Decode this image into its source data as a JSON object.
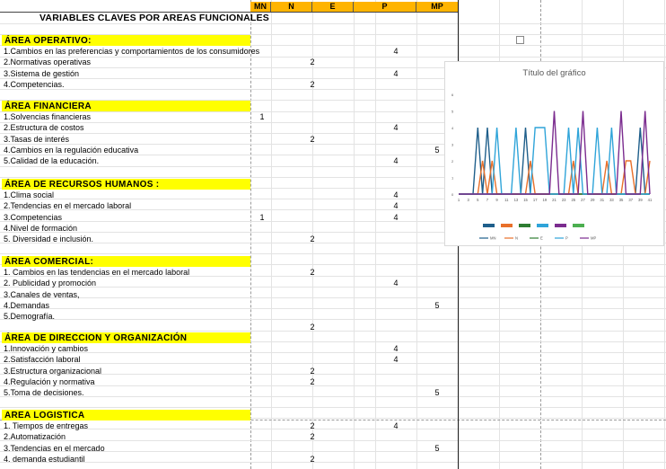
{
  "header": {
    "columns": [
      "MN",
      "N",
      "E",
      "P",
      "MP"
    ],
    "title": "VARIABLES CLAVES POR AREAS FUNCIONALES"
  },
  "sections": [
    {
      "name": "ÁREA OPERATIVO:",
      "items": [
        {
          "label": "1.Cambios en las preferencias y comportamientos de los consumidores",
          "col": "P",
          "value": "4"
        },
        {
          "label": "2.Normativas operativas",
          "col": "N",
          "value": "2"
        },
        {
          "label": "3.Sistema de gestión",
          "col": "P",
          "value": "4"
        },
        {
          "label": "4.Competencias.",
          "col": "N",
          "value": "2"
        }
      ]
    },
    {
      "name": "ÁREA FINANCIERA",
      "items": [
        {
          "label": "1.Solvencias financieras",
          "col": "MN",
          "value": "1"
        },
        {
          "label": "2.Estructura de costos",
          "col": "P",
          "value": "4"
        },
        {
          "label": "3.Tasas de interés",
          "col": "N",
          "value": "2"
        },
        {
          "label": "4.Cambios en la regulación educativa",
          "col": "MP",
          "value": "5"
        },
        {
          "label": "5.Calidad de la educación.",
          "col": "P",
          "value": "4"
        }
      ]
    },
    {
      "name": "ÁREA DE RECURSOS HUMANOS  :",
      "items": [
        {
          "label": "1.Clima social",
          "col": "P",
          "value": "4"
        },
        {
          "label": "2.Tendencias en el mercado laboral",
          "col": "P",
          "value": "4"
        },
        {
          "label": "3.Competencias",
          "col": "MN",
          "value": "1",
          "col2": "P",
          "value2": "4"
        },
        {
          "label": "4.Nivel de formación",
          "col": "",
          "value": ""
        },
        {
          "label": "5. Diversidad e inclusión.",
          "col": "N",
          "value": "2"
        }
      ]
    },
    {
      "name": "ÁREA COMERCIAL:",
      "items": [
        {
          "label": "1. Cambios en las tendencias en el mercado laboral",
          "col": "N",
          "value": "2"
        },
        {
          "label": "2. Publicidad y promoción",
          "col": "P",
          "value": "4"
        },
        {
          "label": "3.Canales de ventas,",
          "col": "",
          "value": ""
        },
        {
          "label": "4.Demandas",
          "col": "MP",
          "value": "5"
        },
        {
          "label": "5.Demografía.",
          "col": "",
          "value": ""
        },
        {
          "label": "",
          "col": "N",
          "value": "2"
        }
      ]
    },
    {
      "name": "ÁREA DE DIRECCION Y ORGANIZACIÓN",
      "items": [
        {
          "label": "1.Innovación y cambios",
          "col": "P",
          "value": "4"
        },
        {
          "label": "2.Satisfacción laboral",
          "col": "P",
          "value": "4"
        },
        {
          "label": "3.Estructura organizacional",
          "col": "N",
          "value": "2"
        },
        {
          "label": "4.Regulación y normativa",
          "col": "N",
          "value": "2"
        },
        {
          "label": "5.Toma de decisiones.",
          "col": "MP",
          "value": "5"
        }
      ]
    },
    {
      "name": "AREA LOGISTICA",
      "items": [
        {
          "label": " 1. Tiempos de entregas",
          "col": "N",
          "value": "2",
          "col2": "P",
          "value2": "4"
        },
        {
          "label": "2.Automatización",
          "col": "N",
          "value": "2"
        },
        {
          "label": "3.Tendencias en el mercado",
          "col": "MP",
          "value": "5"
        },
        {
          "label": "4. demanda estudiantil",
          "col": "N",
          "value": "2"
        }
      ]
    }
  ],
  "chart_data": {
    "type": "line",
    "title": "Título del gráfico",
    "x": [
      1,
      2,
      3,
      4,
      5,
      6,
      7,
      8,
      9,
      10,
      11,
      12,
      13,
      14,
      15,
      16,
      17,
      18,
      19,
      20,
      21,
      22,
      23,
      24,
      25,
      26,
      27,
      28,
      29,
      30,
      31,
      32,
      33,
      34,
      35,
      36,
      37,
      38,
      39,
      40,
      41
    ],
    "x_tick_labels": [
      "1",
      "3",
      "5",
      "7",
      "9",
      "11",
      "13",
      "15",
      "17",
      "19",
      "21",
      "23",
      "25",
      "27",
      "29",
      "31",
      "33",
      "35",
      "37",
      "39",
      "41"
    ],
    "ylim": [
      0,
      6
    ],
    "y_ticks": [
      "0",
      "1",
      "2",
      "3",
      "4",
      "5",
      "6"
    ],
    "legend_position": "bottom",
    "series": [
      {
        "name": "MN",
        "color": "#1f5f8b",
        "values": [
          0,
          0,
          0,
          0,
          4,
          0,
          4,
          0,
          0,
          0,
          0,
          0,
          0,
          0,
          4,
          0,
          0,
          0,
          0,
          0,
          0,
          0,
          0,
          0,
          0,
          0,
          0,
          0,
          0,
          0,
          0,
          0,
          0,
          0,
          0,
          0,
          0,
          0,
          4,
          0,
          0
        ]
      },
      {
        "name": "N",
        "color": "#e8702a",
        "values": [
          0,
          0,
          0,
          0,
          0,
          2,
          0,
          2,
          0,
          0,
          0,
          0,
          0,
          0,
          0,
          2,
          0,
          0,
          0,
          0,
          0,
          0,
          0,
          0,
          2,
          0,
          0,
          0,
          0,
          0,
          0,
          2,
          0,
          0,
          0,
          2,
          2,
          0,
          0,
          0,
          2
        ]
      },
      {
        "name": "E",
        "color": "#2e7d32",
        "values": [
          0,
          0,
          0,
          0,
          0,
          0,
          0,
          0,
          0,
          0,
          0,
          0,
          0,
          0,
          0,
          0,
          0,
          0,
          0,
          0,
          0,
          0,
          0,
          0,
          0,
          0,
          0,
          0,
          0,
          0,
          0,
          0,
          0,
          0,
          0,
          0,
          0,
          0,
          0,
          0,
          0
        ]
      },
      {
        "name": "P",
        "color": "#2fa4d9",
        "values": [
          0,
          0,
          0,
          0,
          0,
          0,
          0,
          0,
          4,
          0,
          0,
          0,
          4,
          0,
          0,
          0,
          4,
          4,
          4,
          0,
          0,
          0,
          0,
          4,
          0,
          4,
          0,
          0,
          0,
          4,
          0,
          0,
          4,
          0,
          0,
          0,
          0,
          0,
          0,
          0,
          0
        ]
      },
      {
        "name": "MP",
        "color": "#7b2c8f",
        "values": [
          0,
          0,
          0,
          0,
          0,
          0,
          0,
          0,
          0,
          0,
          0,
          0,
          0,
          0,
          0,
          0,
          0,
          0,
          0,
          0,
          5,
          0,
          0,
          0,
          0,
          0,
          5,
          0,
          0,
          0,
          0,
          0,
          0,
          0,
          5,
          0,
          0,
          0,
          0,
          5,
          0
        ]
      }
    ]
  }
}
